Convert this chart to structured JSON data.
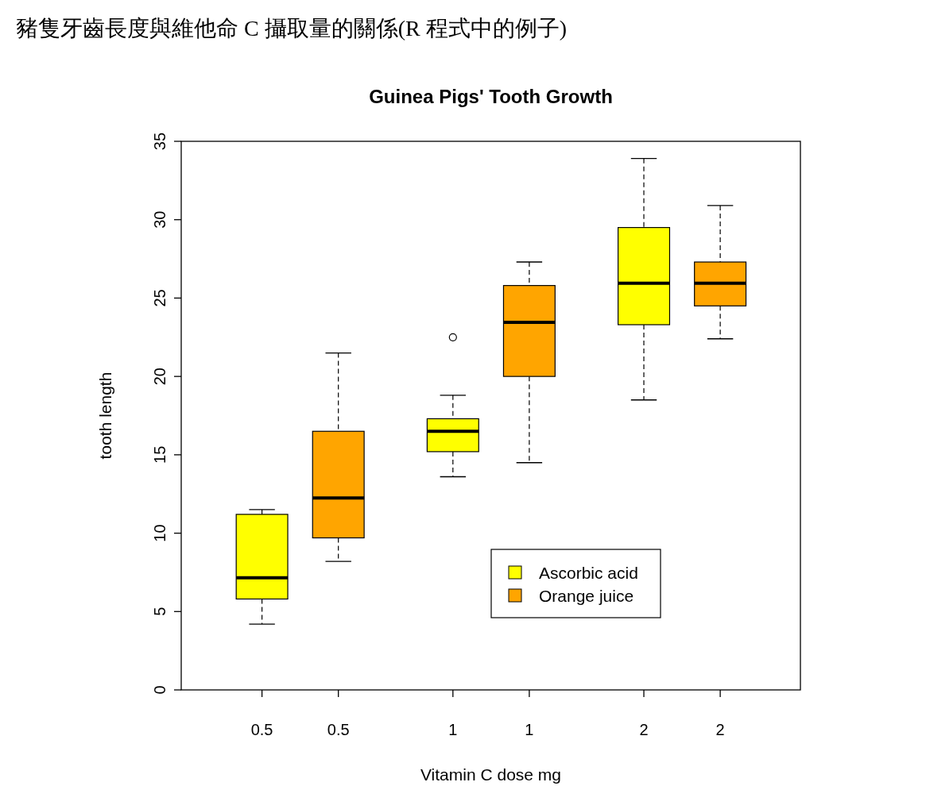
{
  "chart_data": {
    "type": "box",
    "title": "Guinea Pigs' Tooth Growth",
    "xlabel": "Vitamin C dose mg",
    "ylabel": "tooth length",
    "annotations": [
      "豬隻牙齒長度與維他命 C 攝取量的關係(R 程式中的例子)"
    ],
    "categories": [
      "0.5",
      "0.5",
      "1",
      "1",
      "2",
      "2"
    ],
    "ylim": [
      0,
      35
    ],
    "yticks": [
      0,
      5,
      10,
      15,
      20,
      25,
      30,
      35
    ],
    "legend": "bottom right",
    "series": [
      {
        "name": "Ascorbic acid",
        "color": "#ffff00",
        "boxes": [
          {
            "low": 4.2,
            "q1": 5.8,
            "median": 7.15,
            "q3": 11.2,
            "high": 11.5
          },
          null,
          {
            "low": 13.6,
            "q1": 15.2,
            "median": 16.5,
            "q3": 17.3,
            "high": 18.8,
            "outliers": [
              22.5
            ]
          },
          null,
          {
            "low": 18.5,
            "q1": 23.3,
            "median": 25.95,
            "q3": 29.5,
            "high": 33.9
          },
          null
        ]
      },
      {
        "name": "Orange juice",
        "color": "#ffa500",
        "boxes": [
          null,
          {
            "low": 8.2,
            "q1": 9.7,
            "median": 12.25,
            "q3": 16.5,
            "high": 21.5
          },
          null,
          {
            "low": 14.5,
            "q1": 20.0,
            "median": 23.45,
            "q3": 25.8,
            "high": 27.3
          },
          null,
          {
            "low": 22.4,
            "q1": 24.5,
            "median": 25.95,
            "q3": 27.3,
            "high": 30.9
          }
        ]
      }
    ]
  }
}
